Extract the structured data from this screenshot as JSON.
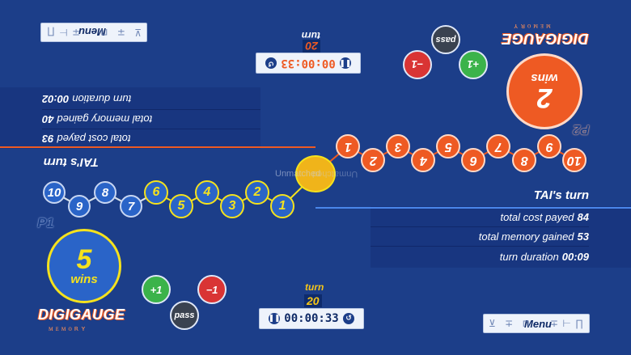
{
  "menu_label": "Menu",
  "menu_glyphs_left": "⊻ ∓ ⊓",
  "menu_glyphs_right": "∓ ⊢ ∏",
  "logo": "DIGIGAUGE",
  "logo_sub": "ᴍᴇᴍᴏʀʏ",
  "p1": {
    "label": "P1",
    "wins_count": "5",
    "wins_label": "wins",
    "timer": "00:00:33",
    "turn_label": "turn",
    "turn_number": "20",
    "status": "TAI's turn",
    "stats": [
      {
        "label": "total cost payed",
        "value": "84"
      },
      {
        "label": "total memory gained",
        "value": "53"
      },
      {
        "label": "turn duration",
        "value": "00:09"
      }
    ],
    "actions": {
      "plus": "+1",
      "minus": "−1",
      "pass": "pass"
    }
  },
  "p2": {
    "label": "P2",
    "wins_count": "2",
    "wins_label": "wins",
    "timer": "00:00:33",
    "turn_label": "turn",
    "turn_number": "20",
    "status": "TAI's turn",
    "stats": [
      {
        "label": "total cost payed",
        "value": "93"
      },
      {
        "label": "total memory gained",
        "value": "40"
      },
      {
        "label": "turn duration",
        "value": "00:02"
      }
    ],
    "actions": {
      "plus": "+1",
      "minus": "−1",
      "pass": "pass"
    }
  },
  "center_label": "Unmatched",
  "track": {
    "p1_nodes": [
      "10",
      "9",
      "8",
      "7",
      "6",
      "5",
      "4",
      "3",
      "2",
      "1"
    ],
    "p2_nodes": [
      "1",
      "2",
      "3",
      "4",
      "5",
      "6",
      "7",
      "8",
      "9",
      "10"
    ]
  },
  "colors": {
    "background": "#1c3e89",
    "accent_orange": "#ee5a23",
    "accent_yellow": "#f5e21d",
    "node_blue": "#2a64c8",
    "plus_green": "#3bb34a",
    "minus_red": "#d93434",
    "pass_gray": "#3a4250"
  },
  "icons": {
    "timer_pause": "pause-icon",
    "timer_reset": "reset-icon"
  }
}
